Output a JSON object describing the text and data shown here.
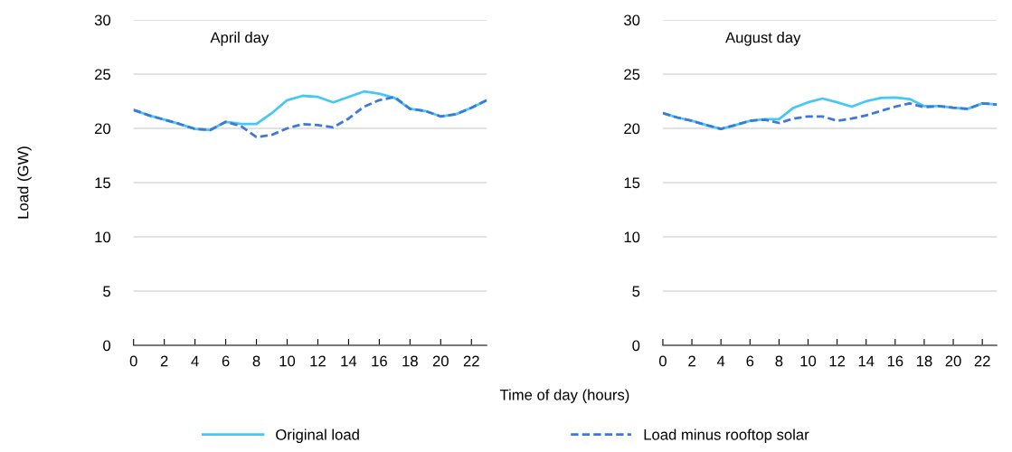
{
  "chart_data": [
    {
      "type": "line",
      "title": "April day",
      "xlabel": "Time of day (hours)",
      "ylabel": "Load (GW)",
      "x": [
        0,
        1,
        2,
        3,
        4,
        5,
        6,
        7,
        8,
        9,
        10,
        11,
        12,
        13,
        14,
        15,
        16,
        17,
        18,
        19,
        20,
        21,
        22,
        23
      ],
      "xlim": [
        0,
        23
      ],
      "xticks": [
        0,
        2,
        4,
        6,
        8,
        10,
        12,
        14,
        16,
        18,
        20,
        22
      ],
      "ylim": [
        0,
        30
      ],
      "yticks": [
        0,
        5,
        10,
        15,
        20,
        25,
        30
      ],
      "grid": "y",
      "legend": "bottom",
      "series": [
        {
          "name": "Original load",
          "color": "#45c8f5",
          "line_style": "solid",
          "values": [
            21.7,
            21.2,
            20.8,
            20.4,
            19.95,
            19.85,
            20.6,
            20.4,
            20.4,
            21.4,
            22.6,
            23.0,
            22.9,
            22.4,
            22.9,
            23.4,
            23.2,
            22.8,
            21.8,
            21.6,
            21.1,
            21.3,
            21.9,
            22.6
          ]
        },
        {
          "name": "Load minus rooftop solar",
          "color": "#3f78d8",
          "line_style": "dashed",
          "values": [
            21.7,
            21.2,
            20.8,
            20.4,
            19.95,
            19.85,
            20.6,
            20.2,
            19.2,
            19.4,
            20.0,
            20.4,
            20.3,
            20.1,
            20.9,
            22.0,
            22.6,
            22.9,
            21.8,
            21.6,
            21.1,
            21.3,
            21.9,
            22.6
          ]
        }
      ]
    },
    {
      "type": "line",
      "title": "August day",
      "x": [
        0,
        1,
        2,
        3,
        4,
        5,
        6,
        7,
        8,
        9,
        10,
        11,
        12,
        13,
        14,
        15,
        16,
        17,
        18,
        19,
        20,
        21,
        22,
        23
      ],
      "xlim": [
        0,
        23
      ],
      "xticks": [
        0,
        2,
        4,
        6,
        8,
        10,
        12,
        14,
        16,
        18,
        20,
        22
      ],
      "ylim": [
        0,
        30
      ],
      "yticks": [
        0,
        5,
        10,
        15,
        20,
        25,
        30
      ],
      "grid": "y",
      "series": [
        {
          "color": "#45c8f5",
          "line_style": "solid",
          "values": [
            21.4,
            21.0,
            20.7,
            20.3,
            19.95,
            20.3,
            20.7,
            20.85,
            20.85,
            21.9,
            22.4,
            22.75,
            22.4,
            22.0,
            22.5,
            22.8,
            22.85,
            22.7,
            22.05,
            22.05,
            21.9,
            21.8,
            22.3,
            22.2
          ]
        },
        {
          "color": "#3f78d8",
          "line_style": "dashed",
          "values": [
            21.4,
            21.0,
            20.7,
            20.3,
            19.95,
            20.3,
            20.7,
            20.8,
            20.5,
            20.9,
            21.1,
            21.1,
            20.7,
            20.9,
            21.2,
            21.6,
            22.0,
            22.3,
            21.95,
            22.05,
            21.9,
            21.8,
            22.3,
            22.2
          ]
        }
      ]
    }
  ]
}
